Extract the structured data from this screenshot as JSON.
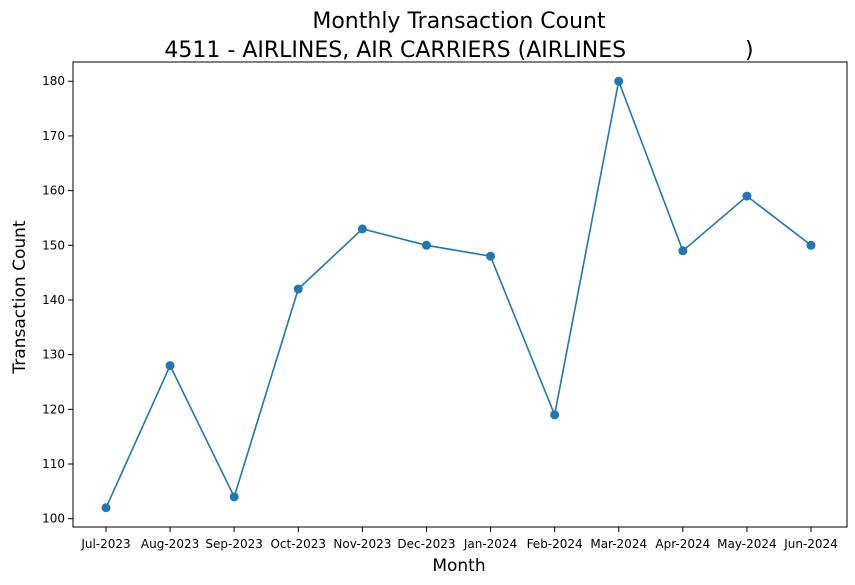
{
  "chart_data": {
    "type": "line",
    "title_lines": [
      "Monthly Transaction Count",
      "4511 - AIRLINES, AIR CARRIERS (AIRLINES                 )"
    ],
    "xlabel": "Month",
    "ylabel": "Transaction Count",
    "categories": [
      "Jul-2023",
      "Aug-2023",
      "Sep-2023",
      "Oct-2023",
      "Nov-2023",
      "Dec-2023",
      "Jan-2024",
      "Feb-2024",
      "Mar-2024",
      "Apr-2024",
      "May-2024",
      "Jun-2024"
    ],
    "series": [
      {
        "values": [
          102,
          128,
          104,
          142,
          153,
          150,
          148,
          119,
          180,
          149,
          159,
          150
        ]
      }
    ],
    "ylim": [
      98.48,
      183.52
    ],
    "yticks": [
      100,
      110,
      120,
      130,
      140,
      150,
      160,
      170,
      180
    ],
    "grid": false,
    "line_color": "#1f77b4",
    "marker": "circle"
  }
}
